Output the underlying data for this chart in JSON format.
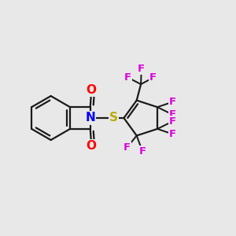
{
  "background_color": "#e8e8e8",
  "bond_color": "#1a1a1a",
  "bond_width": 1.6,
  "atom_colors": {
    "O": "#ff0000",
    "N": "#0000ff",
    "S": "#bbaa00",
    "F": "#dd00dd",
    "C": "#1a1a1a"
  },
  "font_size_atom": 11,
  "font_size_F": 9.5
}
